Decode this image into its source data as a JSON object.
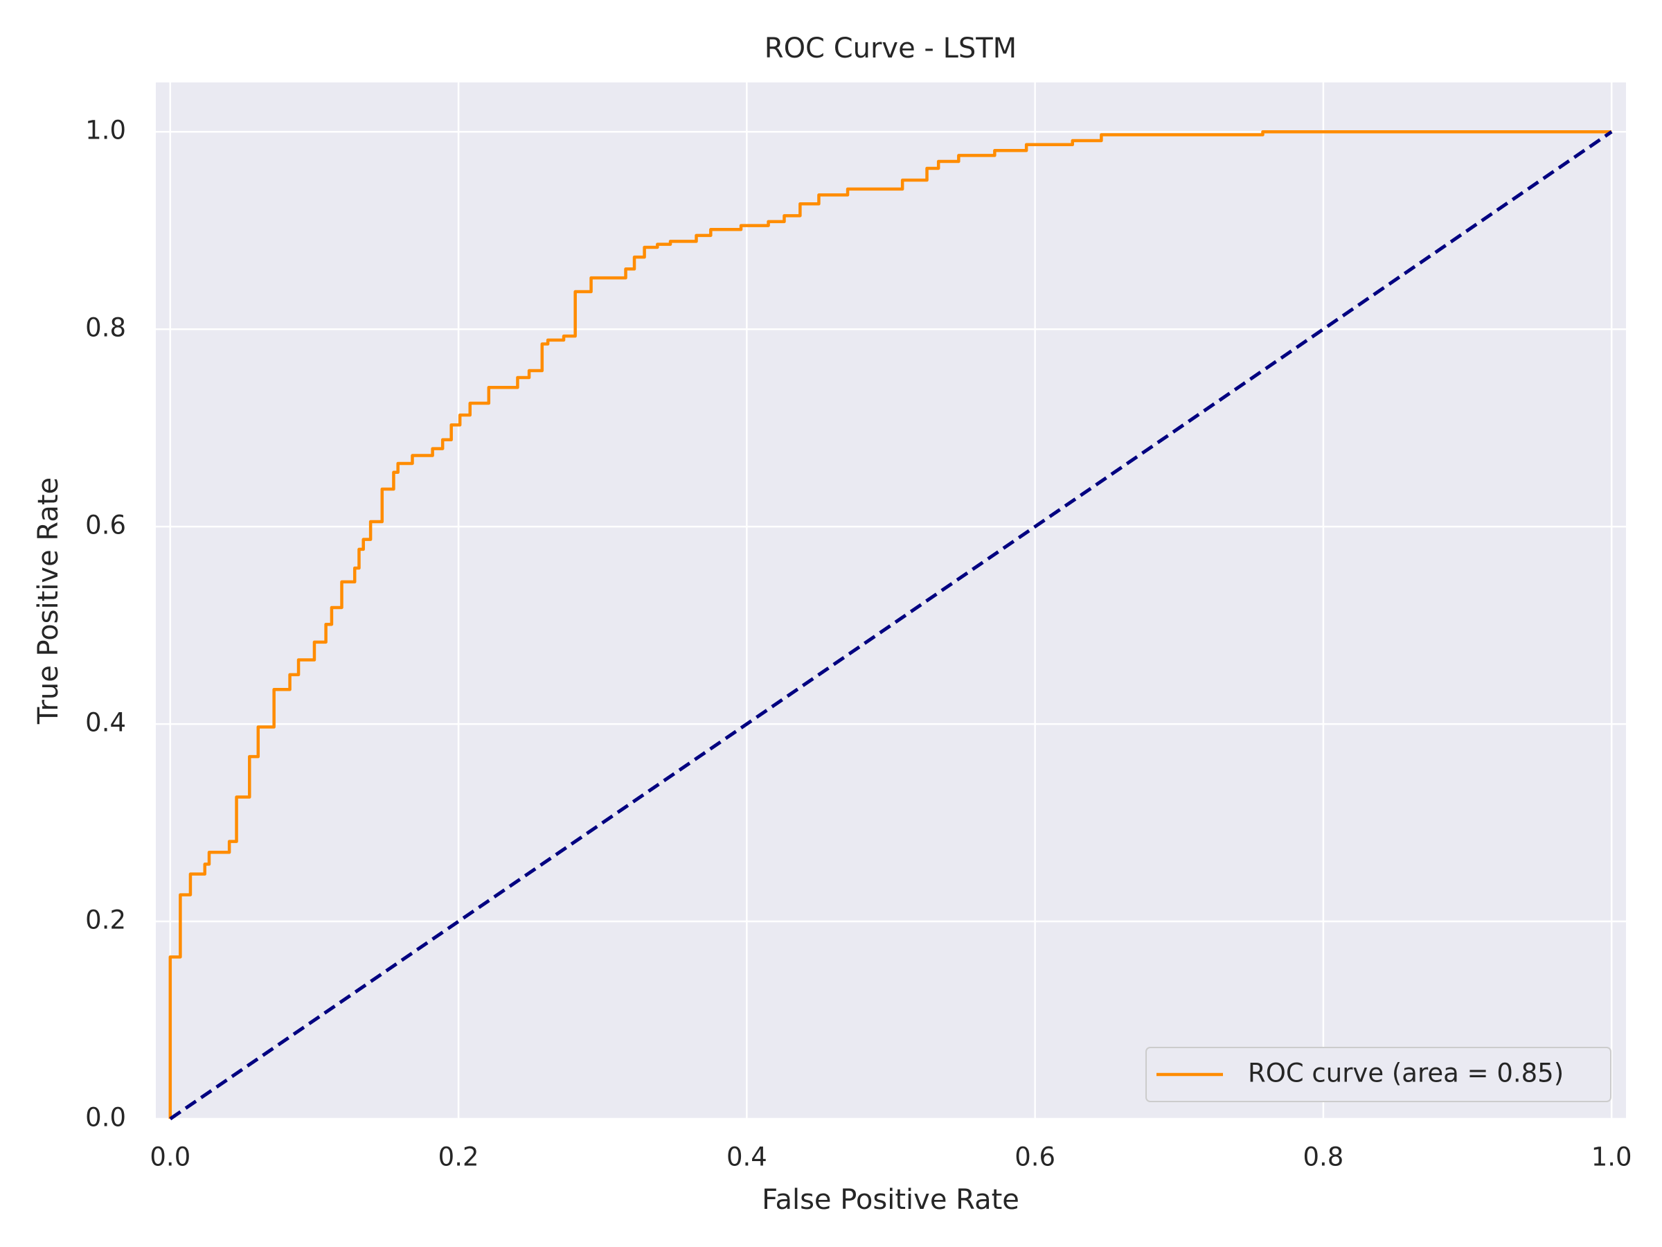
{
  "chart_data": {
    "type": "line",
    "title": "ROC Curve - LSTM",
    "xlabel": "False Positive Rate",
    "ylabel": "True Positive Rate",
    "series": [
      {
        "name": "ROC curve (area = 0.85)",
        "color": "#ff8c00",
        "linestyle": "-",
        "x": [
          0,
          0,
          0.007,
          0.007,
          0.014,
          0.014,
          0.024,
          0.024,
          0.027,
          0.027,
          0.041,
          0.041,
          0.046,
          0.046,
          0.055,
          0.055,
          0.061,
          0.061,
          0.072,
          0.072,
          0.083,
          0.083,
          0.089,
          0.089,
          0.1,
          0.1,
          0.108,
          0.108,
          0.112,
          0.112,
          0.119,
          0.119,
          0.128,
          0.128,
          0.131,
          0.131,
          0.134,
          0.134,
          0.139,
          0.139,
          0.147,
          0.147,
          0.155,
          0.155,
          0.158,
          0.158,
          0.168,
          0.168,
          0.182,
          0.182,
          0.189,
          0.189,
          0.195,
          0.195,
          0.201,
          0.201,
          0.208,
          0.208,
          0.221,
          0.221,
          0.241,
          0.241,
          0.249,
          0.249,
          0.258,
          0.258,
          0.262,
          0.262,
          0.273,
          0.273,
          0.281,
          0.281,
          0.292,
          0.292,
          0.316,
          0.316,
          0.322,
          0.322,
          0.329,
          0.329,
          0.338,
          0.338,
          0.347,
          0.347,
          0.365,
          0.365,
          0.375,
          0.375,
          0.396,
          0.396,
          0.415,
          0.415,
          0.426,
          0.426,
          0.437,
          0.437,
          0.45,
          0.45,
          0.47,
          0.47,
          0.508,
          0.508,
          0.525,
          0.525,
          0.533,
          0.533,
          0.547,
          0.547,
          0.572,
          0.572,
          0.594,
          0.594,
          0.626,
          0.626,
          0.646,
          0.646,
          0.758,
          0.758,
          1
        ],
        "values": [
          0,
          0.164,
          0.164,
          0.227,
          0.227,
          0.248,
          0.248,
          0.258,
          0.258,
          0.27,
          0.27,
          0.281,
          0.281,
          0.326,
          0.326,
          0.367,
          0.367,
          0.397,
          0.397,
          0.435,
          0.435,
          0.45,
          0.45,
          0.465,
          0.465,
          0.483,
          0.483,
          0.501,
          0.501,
          0.518,
          0.518,
          0.544,
          0.544,
          0.558,
          0.558,
          0.577,
          0.577,
          0.587,
          0.587,
          0.605,
          0.605,
          0.638,
          0.638,
          0.655,
          0.655,
          0.664,
          0.664,
          0.672,
          0.672,
          0.679,
          0.679,
          0.688,
          0.688,
          0.703,
          0.703,
          0.713,
          0.713,
          0.725,
          0.725,
          0.741,
          0.741,
          0.751,
          0.751,
          0.758,
          0.758,
          0.785,
          0.785,
          0.789,
          0.789,
          0.793,
          0.793,
          0.838,
          0.838,
          0.852,
          0.852,
          0.861,
          0.861,
          0.873,
          0.873,
          0.883,
          0.883,
          0.886,
          0.886,
          0.889,
          0.889,
          0.895,
          0.895,
          0.901,
          0.901,
          0.905,
          0.905,
          0.909,
          0.909,
          0.915,
          0.915,
          0.927,
          0.927,
          0.936,
          0.936,
          0.942,
          0.942,
          0.951,
          0.951,
          0.963,
          0.963,
          0.97,
          0.97,
          0.976,
          0.976,
          0.981,
          0.981,
          0.987,
          0.987,
          0.991,
          0.991,
          0.997,
          0.997,
          1,
          1
        ]
      },
      {
        "color": "#000080",
        "linestyle": "--",
        "x": [
          0,
          1
        ],
        "values": [
          0,
          1
        ]
      }
    ],
    "xlim": [
      -0.01,
      1.01
    ],
    "ylim": [
      0,
      1.05
    ],
    "xticks": [
      {
        "value": 0,
        "label": "0.0"
      },
      0.2,
      0.4,
      0.6,
      0.8,
      {
        "value": 1,
        "label": "1.0"
      }
    ],
    "yticks": [
      {
        "value": 0,
        "label": "0.0"
      },
      0.2,
      0.4,
      0.6,
      0.8,
      {
        "value": 1,
        "label": "1.0"
      }
    ],
    "grid": true,
    "legend": "lower right"
  }
}
